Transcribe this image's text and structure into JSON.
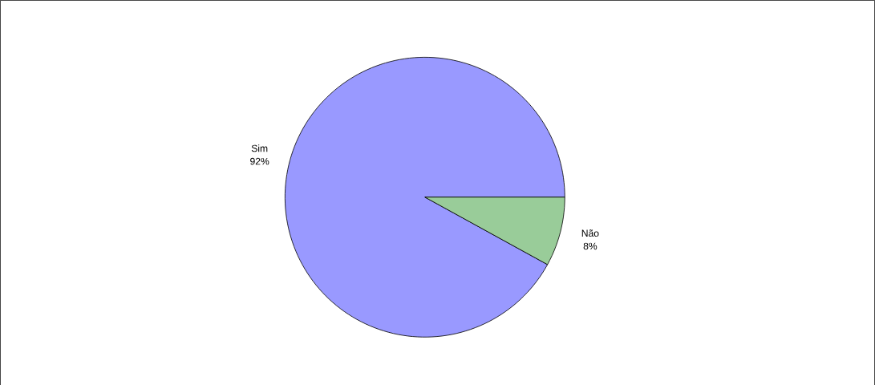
{
  "chart_data": {
    "type": "pie",
    "categories": [
      "Sim",
      "Não"
    ],
    "values": [
      92,
      8
    ],
    "colors": [
      "#9999ff",
      "#99cc99"
    ],
    "value_labels": [
      "92%",
      "8%"
    ]
  }
}
